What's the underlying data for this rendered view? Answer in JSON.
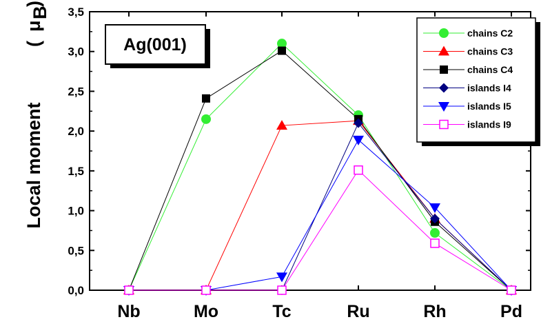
{
  "chart_data": {
    "type": "line",
    "title": "Ag(001)",
    "ylabel": "Local moment",
    "ylabel_unit_symbol": "μ",
    "ylabel_unit_sub": "B",
    "ylabel_paren_open": "(",
    "ylabel_paren_close": ")",
    "xlabel": "",
    "categories": [
      "Nb",
      "Mo",
      "Tc",
      "Ru",
      "Rh",
      "Pd"
    ],
    "ylim": [
      0,
      3.5
    ],
    "yticks": [
      "0,0",
      "0,5",
      "1,0",
      "1,5",
      "2,0",
      "2,5",
      "3,0",
      "3,5"
    ],
    "ytick_values": [
      0,
      0.5,
      1.0,
      1.5,
      2.0,
      2.5,
      3.0,
      3.5
    ],
    "grid": false,
    "legend_position": "top-right",
    "series": [
      {
        "name": "chains C2",
        "color": "#33ee33",
        "marker": "circle-filled",
        "values": [
          0,
          2.15,
          3.1,
          2.2,
          0.72,
          0
        ]
      },
      {
        "name": "chains C3",
        "color": "#ff0000",
        "marker": "triangle-up-filled",
        "values": [
          0,
          0,
          2.07,
          2.13,
          0.9,
          0
        ]
      },
      {
        "name": "chains C4",
        "color": "#000000",
        "marker": "square-filled",
        "values": [
          0,
          2.41,
          3.01,
          2.15,
          0.86,
          0
        ]
      },
      {
        "name": "islands I4",
        "color": "#000080",
        "marker": "diamond-filled",
        "values": [
          0,
          0,
          0,
          2.1,
          0.9,
          0
        ]
      },
      {
        "name": "islands I5",
        "color": "#0000ff",
        "marker": "triangle-down-filled",
        "values": [
          0,
          0,
          0.17,
          1.89,
          1.04,
          0
        ]
      },
      {
        "name": "islands I9",
        "color": "#ff00ff",
        "marker": "square-open",
        "values": [
          0,
          0,
          0,
          1.51,
          0.59,
          0
        ]
      }
    ]
  }
}
